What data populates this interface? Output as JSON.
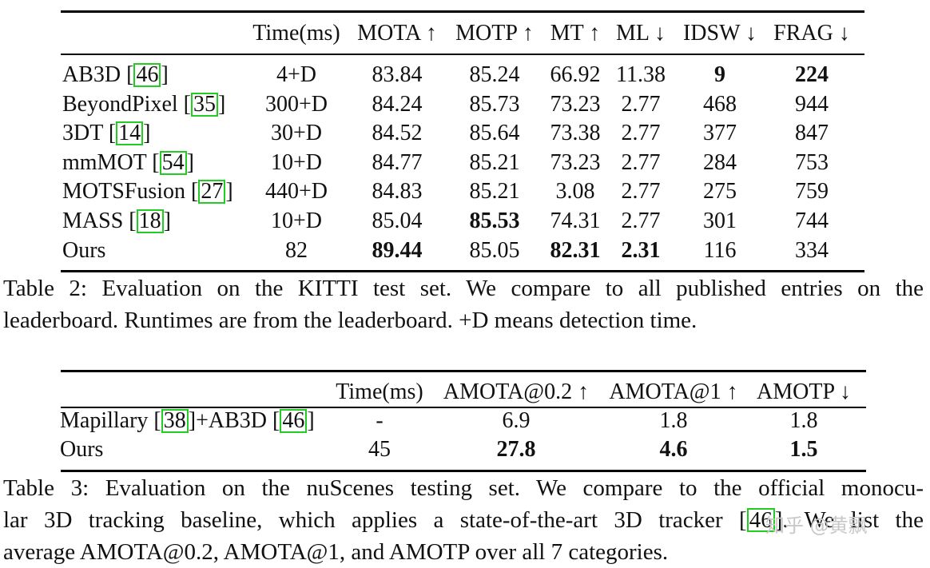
{
  "table2": {
    "headers": [
      "Time(ms)",
      "MOTA ↑",
      "MOTP ↑",
      "MT ↑",
      "ML ↓",
      "IDSW ↓",
      "FRAG ↓"
    ],
    "rows": [
      {
        "method": "AB3D [",
        "cite": "46",
        "close": "]",
        "time": "4+D",
        "mota": "83.84",
        "motp": "85.24",
        "mt": "66.92",
        "ml": "11.38",
        "idsw": "9",
        "frag": "224"
      },
      {
        "method": "BeyondPixel [",
        "cite": "35",
        "close": "]",
        "time": "300+D",
        "mota": "84.24",
        "motp": "85.73",
        "mt": "73.23",
        "ml": "2.77",
        "idsw": "468",
        "frag": "944"
      },
      {
        "method": "3DT [",
        "cite": "14",
        "close": "]",
        "time": "30+D",
        "mota": "84.52",
        "motp": "85.64",
        "mt": "73.38",
        "ml": "2.77",
        "idsw": "377",
        "frag": "847"
      },
      {
        "method": "mmMOT [",
        "cite": "54",
        "close": "]",
        "time": "10+D",
        "mota": "84.77",
        "motp": "85.21",
        "mt": "73.23",
        "ml": "2.77",
        "idsw": "284",
        "frag": "753"
      },
      {
        "method": "MOTSFusion [",
        "cite": "27",
        "close": "]",
        "time": "440+D",
        "mota": "84.83",
        "motp": "85.21",
        "mt": "3.08",
        "ml": "2.77",
        "idsw": "275",
        "frag": "759"
      },
      {
        "method": "MASS [",
        "cite": "18",
        "close": "]",
        "time": "10+D",
        "mota": "85.04",
        "motp": "85.53",
        "mt": "74.31",
        "ml": "2.77",
        "idsw": "301",
        "frag": "744"
      },
      {
        "method": "Ours",
        "time": "82",
        "mota": "89.44",
        "motp": "85.05",
        "mt": "82.31",
        "ml": "2.31",
        "idsw": "116",
        "frag": "334"
      }
    ],
    "caption_lines": [
      "Table 2: Evaluation on the KITTI test set. We compare to all published entries on the",
      "leaderboard. Runtimes are from the leaderboard. +D means detection time."
    ]
  },
  "table3": {
    "headers": [
      "Time(ms)",
      "AMOTA@0.2 ↑",
      "AMOTA@1 ↑",
      "AMOTP ↓"
    ],
    "row1": {
      "m1": "Mapillary [",
      "c1": "38",
      "m2": "]+AB3D [",
      "c2": "46",
      "m3": "]",
      "time": "-",
      "a02": "6.9",
      "a1": "1.8",
      "amotp": "1.8"
    },
    "row2": {
      "method": "Ours",
      "time": "45",
      "a02": "27.8",
      "a1": "4.6",
      "amotp": "1.5"
    },
    "caption": {
      "l1": "Table 3: Evaluation on the nuScenes testing set. We compare to the official monocu-",
      "l2a": "lar 3D tracking baseline, which applies a state-of-the-art 3D tracker [",
      "l2cite": "46",
      "l2b": "]. We list the",
      "l3": "average AMOTA@0.2, AMOTA@1, and AMOTP over all 7 categories."
    }
  },
  "watermark": "知乎 @黄飘"
}
